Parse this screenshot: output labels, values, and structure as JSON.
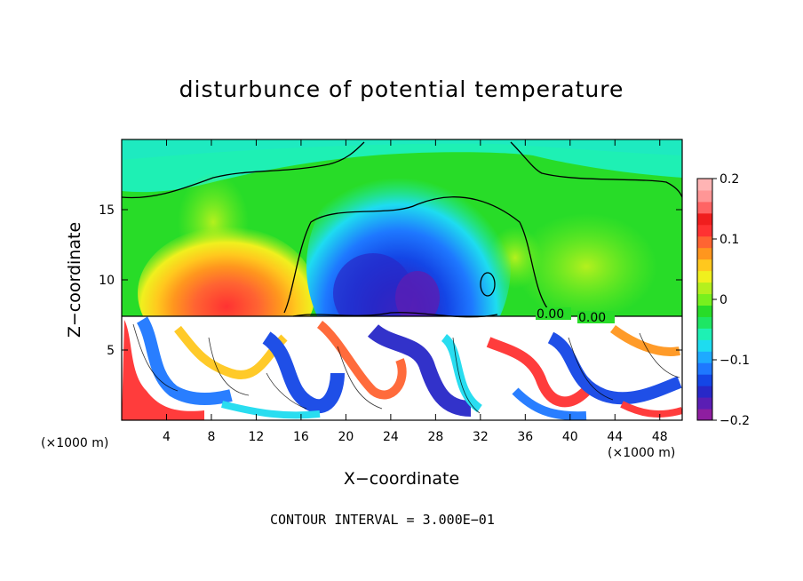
{
  "title": "disturbunce of potential temperature",
  "xlabel": "X−coordinate",
  "ylabel": "Z−coordinate",
  "x_unit_left": "(×1000 m)",
  "x_unit_right": "(×1000 m)",
  "contour_interval": "CONTOUR INTERVAL = 3.000E−01",
  "chart_data": {
    "type": "heatmap",
    "title": "disturbunce of potential temperature",
    "xlabel": "X−coordinate",
    "ylabel": "Z−coordinate",
    "xlim": [
      0,
      50
    ],
    "ylim": [
      0,
      20
    ],
    "xticks": [
      4,
      8,
      12,
      16,
      20,
      24,
      28,
      32,
      36,
      40,
      44,
      48
    ],
    "yticks": [
      5,
      10,
      15
    ],
    "colorbar": {
      "range": [
        -0.2,
        0.2
      ],
      "ticks": [
        {
          "value": 0.2,
          "label": "0.2"
        },
        {
          "value": 0.1,
          "label": "0.1"
        },
        {
          "value": 0.0,
          "label": "0"
        },
        {
          "value": -0.1,
          "label": "−0.1"
        },
        {
          "value": -0.2,
          "label": "−0.2"
        }
      ],
      "colors": [
        "#8e1ea0",
        "#5a1eb4",
        "#2828c8",
        "#1446e6",
        "#1e78ff",
        "#1eaaff",
        "#1edcf0",
        "#1ef0b4",
        "#1ee664",
        "#28dc28",
        "#78f01e",
        "#b4f01e",
        "#f0f01e",
        "#ffc81e",
        "#ff961e",
        "#ff6432",
        "#ff3232",
        "#f01e1e",
        "#ff6464",
        "#ff9696",
        "#ffb4b4"
      ]
    },
    "contour_labels": [
      "0.00",
      "0.00"
    ],
    "contour_interval": 0.3
  }
}
